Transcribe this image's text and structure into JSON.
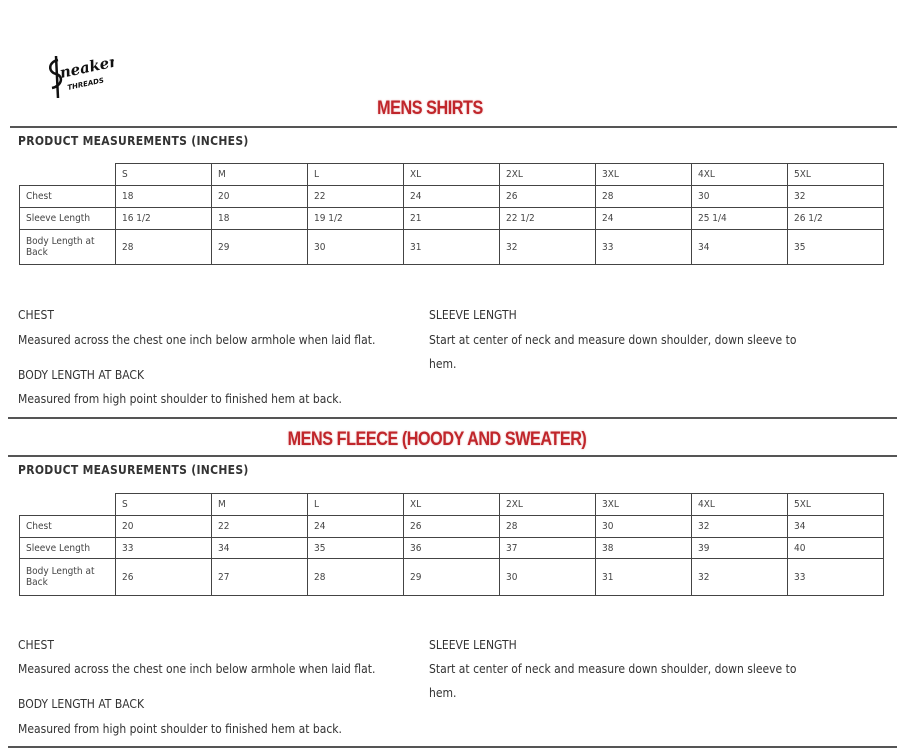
{
  "logo": {
    "text": "Sneaker Threads"
  },
  "sections": [
    {
      "title": "MENS SHIRTS",
      "subhead": "PRODUCT MEASUREMENTS (INCHES)",
      "sizes": [
        "S",
        "M",
        "L",
        "XL",
        "2XL",
        "3XL",
        "4XL",
        "5XL"
      ],
      "rows": [
        {
          "label": "Chest",
          "values": [
            "18",
            "20",
            "22",
            "24",
            "26",
            "28",
            "30",
            "32"
          ]
        },
        {
          "label": "Sleeve Length",
          "values": [
            "16 1/2",
            "18",
            "19 1/2",
            "21",
            "22 1/2",
            "24",
            "25 1/4",
            "26 1/2"
          ]
        },
        {
          "label": "Body Length at Back",
          "values": [
            "28",
            "29",
            "30",
            "31",
            "32",
            "33",
            "34",
            "35"
          ]
        }
      ],
      "notes": {
        "chest_heading": "CHEST",
        "chest_text": "Measured across the chest one inch below armhole when laid flat.",
        "body_heading": "BODY LENGTH AT BACK",
        "body_text": "Measured from high point shoulder to finished hem at back.",
        "sleeve_heading": "SLEEVE LENGTH",
        "sleeve_text_1": "Start at center of neck and measure down shoulder, down sleeve to",
        "sleeve_text_2": "hem."
      }
    },
    {
      "title": "MENS FLEECE (HOODY AND SWEATER)",
      "subhead": "PRODUCT MEASUREMENTS (INCHES)",
      "sizes": [
        "S",
        "M",
        "L",
        "XL",
        "2XL",
        "3XL",
        "4XL",
        "5XL"
      ],
      "rows": [
        {
          "label": "Chest",
          "values": [
            "20",
            "22",
            "24",
            "26",
            "28",
            "30",
            "32",
            "34"
          ]
        },
        {
          "label": "Sleeve Length",
          "values": [
            "33",
            "34",
            "35",
            "36",
            "37",
            "38",
            "39",
            "40"
          ]
        },
        {
          "label": "Body Length at Back",
          "values": [
            "26",
            "27",
            "28",
            "29",
            "30",
            "31",
            "32",
            "33"
          ]
        }
      ],
      "notes": {
        "chest_heading": "CHEST",
        "chest_text": "Measured across the chest one inch below armhole when laid flat.",
        "body_heading": "BODY LENGTH AT BACK",
        "body_text": "Measured from high point shoulder to finished hem at back.",
        "sleeve_heading": "SLEEVE LENGTH",
        "sleeve_text_1": "Start at center of neck and measure down shoulder, down sleeve to",
        "sleeve_text_2": "hem."
      }
    }
  ],
  "colors": {
    "title": "#c0262b",
    "rule": "#555555"
  }
}
